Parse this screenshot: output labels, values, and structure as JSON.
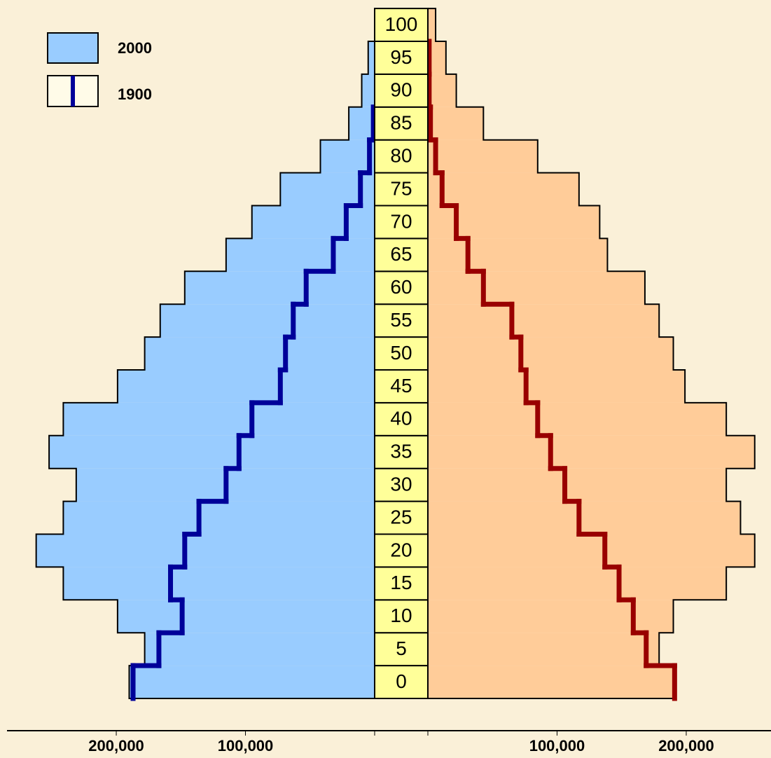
{
  "chart_data": {
    "type": "pyramid",
    "categories": [
      "0",
      "5",
      "10",
      "15",
      "20",
      "25",
      "30",
      "35",
      "40",
      "45",
      "50",
      "55",
      "60",
      "65",
      "70",
      "75",
      "80",
      "85",
      "90",
      "95",
      "100"
    ],
    "series": [
      {
        "name": "2000",
        "left_color": "#99ccff",
        "right_color": "#ffcc99",
        "left": [
          190000,
          178000,
          199000,
          241000,
          262000,
          241000,
          231000,
          252000,
          241000,
          199000,
          178000,
          166000,
          147000,
          115000,
          95000,
          73000,
          42000,
          20000,
          10000,
          5000,
          0
        ],
        "right": [
          191000,
          179000,
          190000,
          231000,
          253000,
          242000,
          231000,
          253000,
          231000,
          199000,
          190000,
          179000,
          168000,
          139000,
          133000,
          117000,
          85000,
          43000,
          22000,
          14000,
          6000
        ]
      },
      {
        "name": "1900",
        "left_color": "#000099",
        "right_color": "#990000",
        "left": [
          187000,
          167000,
          149000,
          158000,
          147000,
          136000,
          115000,
          105000,
          95000,
          73000,
          69000,
          63000,
          53000,
          32000,
          22000,
          11000,
          4000,
          1000,
          null,
          null,
          null
        ],
        "right": [
          191000,
          169000,
          159000,
          148000,
          137000,
          117000,
          106000,
          95000,
          85000,
          76000,
          72000,
          65000,
          43000,
          31000,
          22000,
          11000,
          6000,
          2000,
          1000,
          1000,
          null
        ]
      }
    ],
    "xlim": [
      0,
      290000
    ],
    "xticks": [
      {
        "value": 100000,
        "label": "100,000"
      },
      {
        "value": 200000,
        "label": "200,000"
      }
    ]
  }
}
